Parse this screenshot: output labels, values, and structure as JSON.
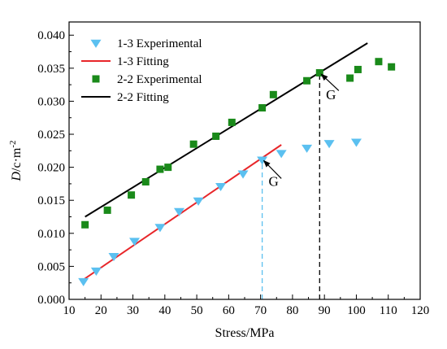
{
  "chart_data": {
    "type": "scatter",
    "xlabel": "Stress/MPa",
    "ylabel_italic": "D",
    "ylabel_rest": "/c·m",
    "ylabel_sup": "-2",
    "xlim": [
      10,
      120
    ],
    "ylim": [
      0.0,
      0.042
    ],
    "xticks": [
      10,
      20,
      30,
      40,
      50,
      60,
      70,
      80,
      90,
      100,
      110,
      120
    ],
    "yticks": [
      0.0,
      0.005,
      0.01,
      0.015,
      0.02,
      0.025,
      0.03,
      0.035,
      0.04
    ],
    "ytick_labels": [
      "0.000",
      "0.005",
      "0.010",
      "0.015",
      "0.020",
      "0.025",
      "0.030",
      "0.035",
      "0.040"
    ],
    "grid": false,
    "legend_position": "top-left",
    "series": [
      {
        "name": "1-3 Experimental",
        "kind": "scatter",
        "marker": "triangle-down",
        "color": "#5bc0f0",
        "x": [
          14.5,
          18.5,
          24,
          30.5,
          38.5,
          44.5,
          50.5,
          57.5,
          64.5,
          70.5,
          76.5,
          84.5,
          91.5,
          100
        ],
        "y": [
          0.0027,
          0.0043,
          0.0065,
          0.0088,
          0.0109,
          0.0133,
          0.0149,
          0.0171,
          0.019,
          0.0211,
          0.0221,
          0.0229,
          0.0236,
          0.0238
        ]
      },
      {
        "name": "1-3 Fitting",
        "kind": "line",
        "color": "#e8262a",
        "x": [
          14.5,
          76.5
        ],
        "y": [
          0.003,
          0.0234
        ]
      },
      {
        "name": "2-2 Experimental",
        "kind": "scatter",
        "marker": "square",
        "color": "#1a8a1a",
        "x": [
          15,
          22,
          29.5,
          34,
          38.5,
          41,
          49,
          56,
          61,
          70.5,
          74,
          84.5,
          88.5,
          98,
          100.5,
          107,
          111
        ],
        "y": [
          0.0113,
          0.0135,
          0.0158,
          0.0178,
          0.0197,
          0.02,
          0.0235,
          0.0247,
          0.0268,
          0.029,
          0.031,
          0.0331,
          0.0343,
          0.0335,
          0.0348,
          0.036,
          0.0352
        ]
      },
      {
        "name": "2-2 Fitting",
        "kind": "line",
        "color": "#000000",
        "x": [
          15,
          103.5
        ],
        "y": [
          0.0125,
          0.0388
        ]
      }
    ],
    "annotations": [
      {
        "text": "G",
        "x_text": 72.5,
        "y_text": 0.0172,
        "arrow_from": [
          76.5,
          0.0183
        ],
        "arrow_to": [
          71.0,
          0.021
        ]
      },
      {
        "text": "G",
        "x_text": 90.5,
        "y_text": 0.0303,
        "arrow_from": [
          94.5,
          0.0316
        ],
        "arrow_to": [
          89.0,
          0.0341
        ]
      }
    ],
    "reference_lines": [
      {
        "x": 70.5,
        "y_from": 0.0,
        "y_to": 0.0211,
        "color": "#5bc0f0",
        "style": "dashed"
      },
      {
        "x": 88.5,
        "y_from": 0.0,
        "y_to": 0.0343,
        "color": "#000000",
        "style": "dashed"
      }
    ]
  }
}
